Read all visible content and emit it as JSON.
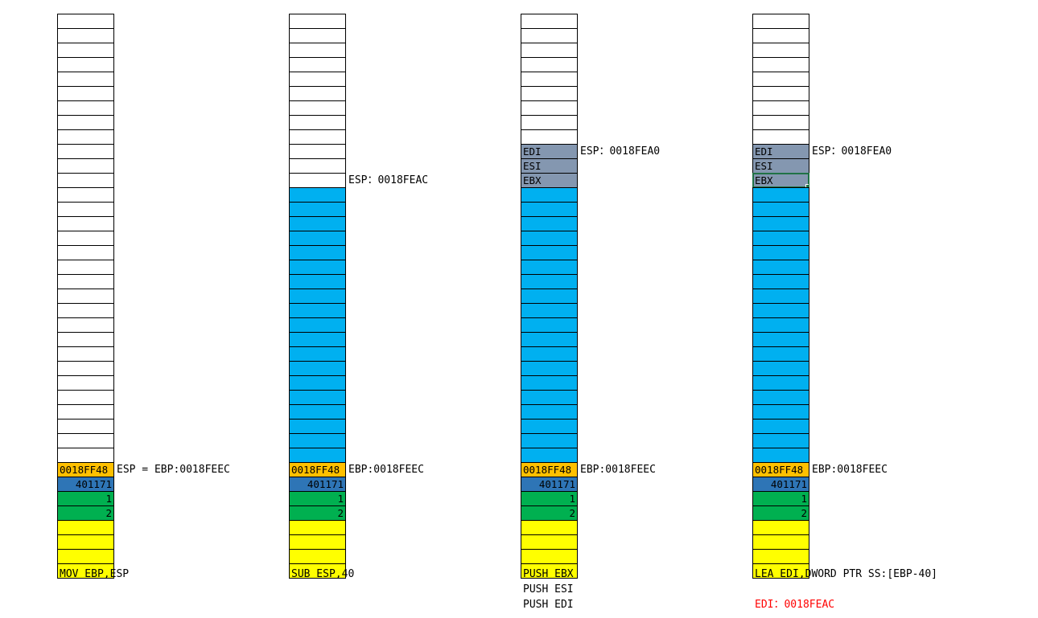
{
  "colors": {
    "free": "#ffffff",
    "local_vars": "#00b0f0",
    "saved_ebp": "#ffc000",
    "return_address": "#2e75b6",
    "args": "#00b050",
    "caller_frame": "#ffff00",
    "saved_regs": "#8497b0",
    "highlight_text": "#ff0000"
  },
  "panels": [
    {
      "cells": [
        "",
        "",
        "",
        "",
        "",
        "",
        "",
        "",
        "",
        "",
        "",
        "",
        "",
        "",
        "",
        "",
        "",
        "",
        "",
        "",
        "",
        "",
        "",
        "",
        "",
        "",
        "",
        "",
        "",
        "",
        "",
        "0018FF48",
        "401171",
        "1",
        "2",
        "",
        "",
        "",
        ""
      ],
      "kinds": [
        "w",
        "w",
        "w",
        "w",
        "w",
        "w",
        "w",
        "w",
        "w",
        "w",
        "w",
        "w",
        "w",
        "w",
        "w",
        "w",
        "w",
        "w",
        "w",
        "w",
        "w",
        "w",
        "w",
        "w",
        "w",
        "w",
        "w",
        "w",
        "w",
        "w",
        "w",
        "o",
        "d",
        "g",
        "g",
        "y",
        "y",
        "y",
        "y"
      ],
      "labels": [
        {
          "row": 31,
          "text": "ESP = EBP:0018FEEC"
        }
      ],
      "caption": [
        "MOV EBP,ESP"
      ]
    },
    {
      "cells": [
        "",
        "",
        "",
        "",
        "",
        "",
        "",
        "",
        "",
        "",
        "",
        "",
        "",
        "",
        "",
        "",
        "",
        "",
        "",
        "",
        "",
        "",
        "",
        "",
        "",
        "",
        "",
        "",
        "",
        "",
        "",
        "0018FF48",
        "401171",
        "1",
        "2",
        "",
        "",
        "",
        ""
      ],
      "kinds": [
        "w",
        "w",
        "w",
        "w",
        "w",
        "w",
        "w",
        "w",
        "w",
        "w",
        "w",
        "w",
        "b",
        "b",
        "b",
        "b",
        "b",
        "b",
        "b",
        "b",
        "b",
        "b",
        "b",
        "b",
        "b",
        "b",
        "b",
        "b",
        "b",
        "b",
        "b",
        "o",
        "d",
        "g",
        "g",
        "y",
        "y",
        "y",
        "y"
      ],
      "labels": [
        {
          "row": 11,
          "text": "ESP：0018FEAC"
        },
        {
          "row": 31,
          "text": "EBP:0018FEEC"
        }
      ],
      "caption": [
        "SUB ESP,40"
      ]
    },
    {
      "cells": [
        "",
        "",
        "",
        "",
        "",
        "",
        "",
        "",
        "",
        "EDI",
        "ESI",
        "EBX",
        "",
        "",
        "",
        "",
        "",
        "",
        "",
        "",
        "",
        "",
        "",
        "",
        "",
        "",
        "",
        "",
        "",
        "",
        "",
        "0018FF48",
        "401171",
        "1",
        "2",
        "",
        "",
        "",
        ""
      ],
      "kinds": [
        "w",
        "w",
        "w",
        "w",
        "w",
        "w",
        "w",
        "w",
        "w",
        "s",
        "s",
        "s",
        "b",
        "b",
        "b",
        "b",
        "b",
        "b",
        "b",
        "b",
        "b",
        "b",
        "b",
        "b",
        "b",
        "b",
        "b",
        "b",
        "b",
        "b",
        "b",
        "o",
        "d",
        "g",
        "g",
        "y",
        "y",
        "y",
        "y"
      ],
      "labels": [
        {
          "row": 9,
          "text": "ESP：0018FEA0"
        },
        {
          "row": 31,
          "text": "EBP:0018FEEC"
        }
      ],
      "caption": [
        "PUSH EBX",
        "PUSH ESI",
        "PUSH EDI"
      ]
    },
    {
      "cells": [
        "",
        "",
        "",
        "",
        "",
        "",
        "",
        "",
        "",
        "EDI",
        "ESI",
        "EBX",
        "",
        "",
        "",
        "",
        "",
        "",
        "",
        "",
        "",
        "",
        "",
        "",
        "",
        "",
        "",
        "",
        "",
        "",
        "",
        "0018FF48",
        "401171",
        "1",
        "2",
        "",
        "",
        "",
        ""
      ],
      "kinds": [
        "w",
        "w",
        "w",
        "w",
        "w",
        "w",
        "w",
        "w",
        "w",
        "s",
        "s",
        "S",
        "b",
        "b",
        "b",
        "b",
        "b",
        "b",
        "b",
        "b",
        "b",
        "b",
        "b",
        "b",
        "b",
        "b",
        "b",
        "b",
        "b",
        "b",
        "b",
        "o",
        "d",
        "g",
        "g",
        "y",
        "y",
        "y",
        "y"
      ],
      "labels": [
        {
          "row": 9,
          "text": "ESP：0018FEA0"
        },
        {
          "row": 31,
          "text": "EBP:0018FEEC"
        }
      ],
      "caption": [
        "LEA EDI,DWORD PTR SS:[EBP-40]"
      ],
      "note": "EDI：0018FEAC"
    }
  ]
}
